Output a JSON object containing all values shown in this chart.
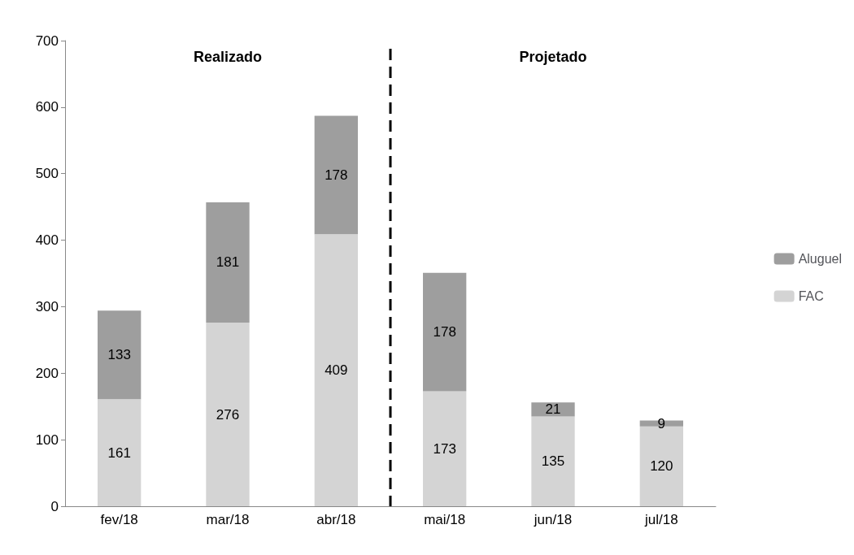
{
  "chart_data": {
    "type": "bar",
    "stacked": true,
    "categories": [
      "fev/18",
      "mar/18",
      "abr/18",
      "mai/18",
      "jun/18",
      "jul/18"
    ],
    "series": [
      {
        "name": "FAC",
        "color": "#d4d4d4",
        "values": [
          161,
          276,
          409,
          173,
          135,
          120
        ]
      },
      {
        "name": "Aluguel",
        "color": "#9e9e9e",
        "values": [
          133,
          181,
          178,
          178,
          21,
          9
        ]
      }
    ],
    "ylim": [
      0,
      700
    ],
    "yticks": [
      0,
      100,
      200,
      300,
      400,
      500,
      600,
      700
    ],
    "grid": false,
    "legend": "right",
    "data_labels": true,
    "annotations": [
      "Realizado",
      "Projetado"
    ]
  }
}
